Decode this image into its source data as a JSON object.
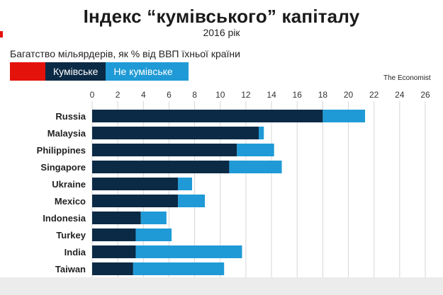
{
  "page": {
    "title": "Індекс “кумівського” капіталу",
    "subtitle": "2016 рік",
    "description": "Багатство мільярдерів, як % від ВВП їхньої країни",
    "source": "The Economist"
  },
  "legend": {
    "crony_label": "Кумівське",
    "noncrony_label": "Не кумівське"
  },
  "colors": {
    "crony": "#0b2a45",
    "noncrony": "#1f9ad6",
    "accent_red": "#e3120b",
    "grid": "#d6d6d6"
  },
  "chart_data": {
    "type": "bar",
    "orientation": "horizontal",
    "stacked": true,
    "title": "Індекс “кумівського” капіталу",
    "subtitle": "2016 рік",
    "xlabel": "",
    "ylabel": "",
    "xlim": [
      0,
      26
    ],
    "xticks": [
      0,
      2,
      4,
      6,
      8,
      10,
      12,
      14,
      16,
      18,
      20,
      22,
      24,
      26
    ],
    "grid": true,
    "legend_position": "top-left",
    "categories": [
      "Russia",
      "Malaysia",
      "Philippines",
      "Singapore",
      "Ukraine",
      "Mexico",
      "Indonesia",
      "Turkey",
      "India",
      "Taiwan"
    ],
    "series": [
      {
        "name": "Кумівське",
        "values": [
          18.0,
          13.0,
          11.3,
          10.7,
          6.7,
          6.7,
          3.8,
          3.4,
          3.4,
          3.2
        ]
      },
      {
        "name": "Не кумівське",
        "values": [
          3.3,
          0.4,
          2.9,
          4.1,
          1.1,
          2.1,
          2.0,
          2.8,
          8.3,
          7.1
        ]
      }
    ]
  }
}
